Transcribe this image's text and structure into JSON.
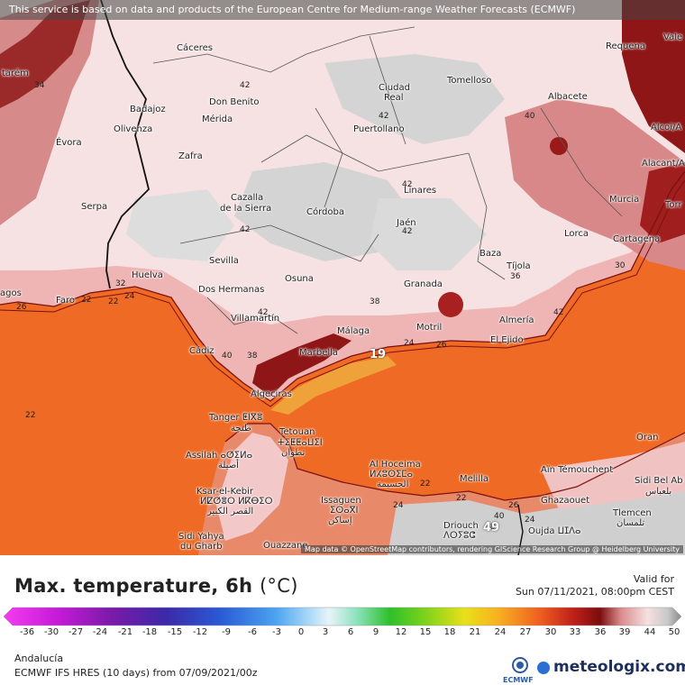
{
  "banner": "This service is based on data and products of the European Centre for Medium-range Weather Forecasts (ECMWF)",
  "attribution": "Map data © OpenStreetMap contributors, rendering GIScience Research Group @ Heidelberg University",
  "title": "Max. temperature, 6h",
  "unit": "(°C)",
  "valid_label": "Valid for",
  "valid_value": "Sun 07/11/2021, 08:00pm CEST",
  "region": "Andalucía",
  "model": "ECMWF IFS HRES (10 days) from 07/09/2021/00z",
  "ecmwf_label": "ECMWF",
  "brand": "meteologix.com",
  "colors": {
    "sea_orange": "#ef6a24",
    "hot_pink": "#f0b8b8",
    "pale": "#f7e4e4",
    "grey": "#cfcfcf",
    "dark_red": "#9a1a1a"
  },
  "scale_ticks": [
    "-36",
    "-30",
    "-27",
    "-24",
    "-21",
    "-18",
    "-15",
    "-12",
    "-9",
    "-6",
    "-3",
    "0",
    "3",
    "6",
    "9",
    "12",
    "15",
    "18",
    "21",
    "24",
    "27",
    "30",
    "33",
    "36",
    "39",
    "44",
    "50"
  ],
  "cities": [
    {
      "name": "Cáceres"
    },
    {
      "name": "Requena"
    },
    {
      "name": "Vale"
    },
    {
      "name": "tarém"
    },
    {
      "name": "Ciudad"
    },
    {
      "name": "Real"
    },
    {
      "name": "Tomelloso"
    },
    {
      "name": "Badajoz"
    },
    {
      "name": "Don Benito"
    },
    {
      "name": "Mérida"
    },
    {
      "name": "Albacete"
    },
    {
      "name": "Olivenza"
    },
    {
      "name": "Puertollano"
    },
    {
      "name": "Alcoi/A"
    },
    {
      "name": "Évora"
    },
    {
      "name": "Zafra"
    },
    {
      "name": "Alacant/A"
    },
    {
      "name": "Linares"
    },
    {
      "name": "Murcia"
    },
    {
      "name": "Torr"
    },
    {
      "name": "Serpa"
    },
    {
      "name": "Cazalla"
    },
    {
      "name": "de la Sierra"
    },
    {
      "name": "Córdoba"
    },
    {
      "name": "Jaén"
    },
    {
      "name": "Lorca"
    },
    {
      "name": "Cartagena"
    },
    {
      "name": "Sevilla"
    },
    {
      "name": "Baza"
    },
    {
      "name": "Huelva"
    },
    {
      "name": "Osuna"
    },
    {
      "name": "Tíjola"
    },
    {
      "name": "agos"
    },
    {
      "name": "Dos Hermanas"
    },
    {
      "name": "Granada"
    },
    {
      "name": "Faro"
    },
    {
      "name": "Villamartín"
    },
    {
      "name": "Almería"
    },
    {
      "name": "Málaga"
    },
    {
      "name": "Motril"
    },
    {
      "name": "El Ejido"
    },
    {
      "name": "Cádiz"
    },
    {
      "name": "Marbella"
    },
    {
      "name": "Algeciras"
    },
    {
      "name": "Tanger ⵟⵏⴳⴻ"
    },
    {
      "name": "طنجة"
    },
    {
      "name": "Tetouan"
    },
    {
      "name": "ⵜⵉⵟⵟⴰⵡⵉⵏ"
    },
    {
      "name": "تطوان"
    },
    {
      "name": "Oran"
    },
    {
      "name": "Assilah ⴰⵚⵉⵍⴰ"
    },
    {
      "name": "أصيلة"
    },
    {
      "name": "Al Hoceima"
    },
    {
      "name": "ⵍⵃⵓⵙⵉⵎⴰ"
    },
    {
      "name": "الحسيمة"
    },
    {
      "name": "Aïn Témouchent"
    },
    {
      "name": "Sidi Bel Ab"
    },
    {
      "name": "Melilla"
    },
    {
      "name": "Ksar-el-Kebir"
    },
    {
      "name": "ⵍⵇⵚⴻⵔ ⵍⴽⴱⵉⵔ"
    },
    {
      "name": "القصر الكبير"
    },
    {
      "name": "Issaguen"
    },
    {
      "name": "ⵉⵙⴰⴳⵏ"
    },
    {
      "name": "إساكن"
    },
    {
      "name": "Ghazaouet"
    },
    {
      "name": "Tlemcen"
    },
    {
      "name": "تلمسان"
    },
    {
      "name": "Driouch"
    },
    {
      "name": "ⴷⵔⵢⵓⵛ"
    },
    {
      "name": "Oujda ⵡⵊⴷⴰ"
    },
    {
      "name": "Sidi Yahya"
    },
    {
      "name": "du Gharb"
    },
    {
      "name": "Ouazzane"
    },
    {
      "name": "بلعباس"
    }
  ],
  "isolines": [
    "34",
    "42",
    "42",
    "42",
    "40",
    "42",
    "42",
    "42",
    "38",
    "32",
    "24",
    "22",
    "26",
    "22",
    "42",
    "36",
    "40",
    "38",
    "24",
    "26",
    "30",
    "22",
    "22",
    "24",
    "40",
    "38",
    "26",
    "24",
    "22"
  ],
  "isoline_big": [
    "19",
    "49"
  ]
}
